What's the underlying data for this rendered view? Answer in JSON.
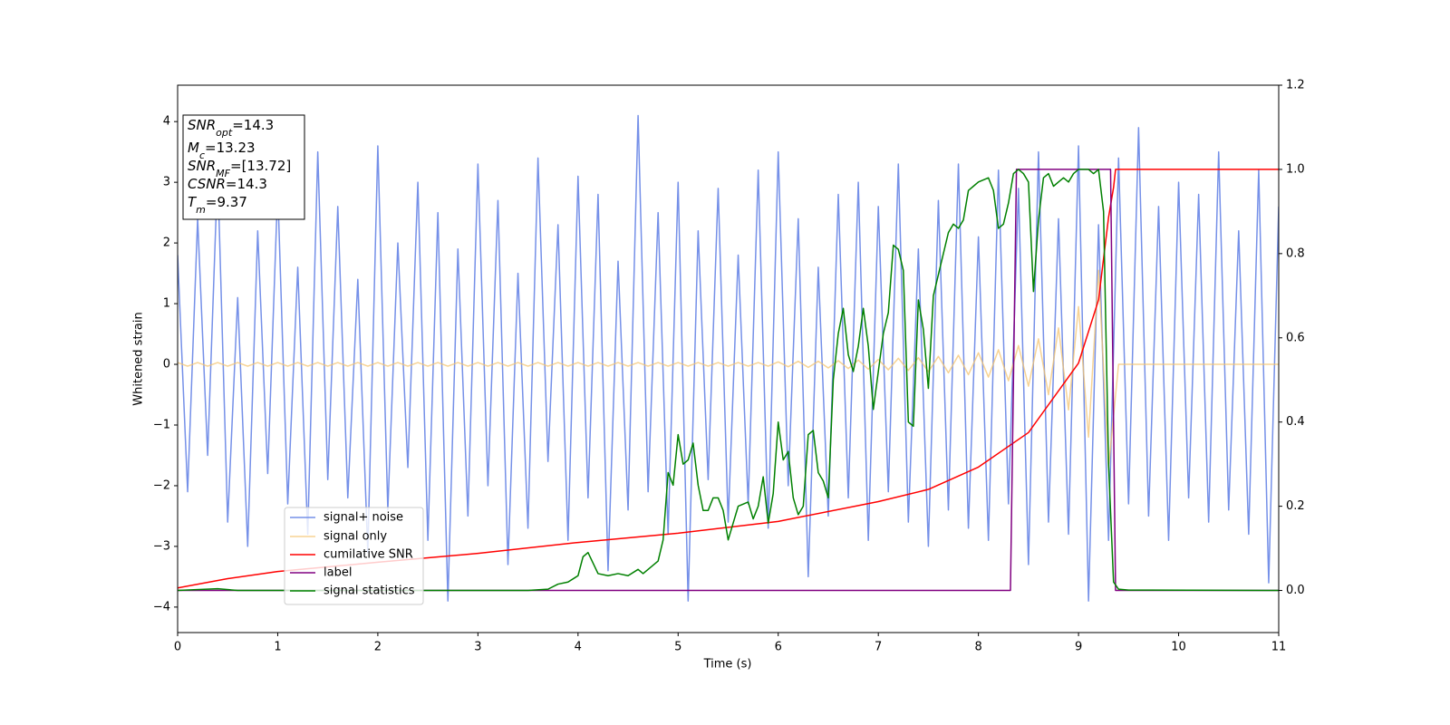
{
  "chart_data": {
    "type": "line",
    "xlabel": "Time (s)",
    "ylabel": "Whitened strain",
    "xlim": [
      0,
      11
    ],
    "ylim": [
      -4.42,
      4.6
    ],
    "y2lim": [
      -0.1,
      1.2
    ],
    "xticks": [
      0,
      1,
      2,
      3,
      4,
      5,
      6,
      7,
      8,
      9,
      10,
      11
    ],
    "yticks": [
      {
        "value": -4,
        "label": "−4"
      },
      {
        "value": -3,
        "label": "−3"
      },
      {
        "value": -2,
        "label": "−2"
      },
      {
        "value": -1,
        "label": "−1"
      },
      0,
      1,
      2,
      3,
      4
    ],
    "y2ticks": [
      {
        "value": 0,
        "label": "0.0"
      },
      {
        "value": 0.2,
        "label": "0.2"
      },
      {
        "value": 0.4,
        "label": "0.4"
      },
      {
        "value": 0.6,
        "label": "0.6"
      },
      {
        "value": 0.8,
        "label": "0.8"
      },
      {
        "value": 1.0,
        "label": "1.0"
      },
      {
        "value": 1.2,
        "label": "1.2"
      }
    ],
    "annotation": [
      {
        "name": "SNR",
        "sub": "opt",
        "text": "=14.3"
      },
      {
        "name": "M",
        "sub": "c",
        "text": "=13.23"
      },
      {
        "name": "SNR",
        "sub": "MF",
        "text": "=[13.72]"
      },
      {
        "name": "CSNR",
        "text": "=14.3"
      },
      {
        "name": "T",
        "sub": "m",
        "text": "=9.37"
      }
    ],
    "x": [
      0,
      0.1,
      0.2,
      0.3,
      0.4,
      0.5,
      0.6,
      0.7,
      0.8,
      0.9,
      1,
      1.1,
      1.2,
      1.3,
      1.4,
      1.5,
      1.6,
      1.7,
      1.8,
      1.9,
      2,
      2.1,
      2.2,
      2.3,
      2.4,
      2.5,
      2.6,
      2.7,
      2.8,
      2.9,
      3,
      3.1,
      3.2,
      3.3,
      3.4,
      3.5,
      3.6,
      3.7,
      3.8,
      3.9,
      4,
      4.1,
      4.2,
      4.3,
      4.4,
      4.5,
      4.6,
      4.7,
      4.8,
      4.9,
      5,
      5.1,
      5.2,
      5.3,
      5.4,
      5.5,
      5.6,
      5.7,
      5.8,
      5.9,
      6,
      6.1,
      6.2,
      6.3,
      6.4,
      6.5,
      6.6,
      6.7,
      6.8,
      6.9,
      7,
      7.1,
      7.2,
      7.3,
      7.4,
      7.5,
      7.6,
      7.7,
      7.8,
      7.9,
      8,
      8.1,
      8.2,
      8.3,
      8.4,
      8.5,
      8.6,
      8.7,
      8.8,
      8.9,
      9,
      9.1,
      9.2,
      9.3,
      9.4,
      9.5,
      9.6,
      9.7,
      9.8,
      9.9,
      10,
      10.1,
      10.2,
      10.3,
      10.4,
      10.5,
      10.6,
      10.7,
      10.8,
      10.9,
      11
    ],
    "series": [
      {
        "name": "signal+ noise",
        "color": "#7590e8",
        "values": [
          1.8,
          -2.1,
          2.4,
          -1.5,
          3.2,
          -2.6,
          1.1,
          -3.0,
          2.2,
          -1.8,
          2.9,
          -2.3,
          1.6,
          -2.8,
          3.5,
          -1.9,
          2.6,
          -2.2,
          1.4,
          -3.1,
          3.6,
          -2.4,
          2.0,
          -1.7,
          3.0,
          -2.9,
          2.5,
          -3.9,
          1.9,
          -2.5,
          3.3,
          -2.0,
          2.7,
          -3.3,
          1.5,
          -2.7,
          3.4,
          -1.6,
          2.3,
          -2.9,
          3.1,
          -2.2,
          2.8,
          -3.4,
          1.7,
          -2.4,
          4.1,
          -2.1,
          2.5,
          -2.8,
          3.0,
          -3.9,
          2.2,
          -1.9,
          2.9,
          -2.6,
          1.8,
          -2.3,
          3.2,
          -2.7,
          3.5,
          -2.0,
          2.4,
          -3.5,
          1.6,
          -2.5,
          2.8,
          -2.2,
          3.0,
          -2.9,
          2.6,
          -2.1,
          3.3,
          -2.6,
          1.9,
          -3.0,
          2.7,
          -2.4,
          3.3,
          -2.7,
          2.1,
          -2.9,
          3.2,
          -2.3,
          2.9,
          -3.3,
          3.5,
          -2.6,
          2.4,
          -2.8,
          3.6,
          -3.9,
          2.3,
          -2.9,
          3.4,
          -2.3,
          3.9,
          -2.5,
          2.6,
          -2.9,
          3.0,
          -2.2,
          2.8,
          -2.6,
          3.5,
          -2.4,
          2.2,
          -2.8,
          3.2,
          -3.6,
          2.6
        ]
      },
      {
        "name": "signal only",
        "color": "#f4c470",
        "values": [
          0.03,
          -0.03,
          0.03,
          -0.03,
          0.03,
          -0.03,
          0.03,
          -0.03,
          0.03,
          -0.03,
          0.03,
          -0.03,
          0.03,
          -0.03,
          0.03,
          -0.03,
          0.03,
          -0.03,
          0.03,
          -0.03,
          0.03,
          -0.03,
          0.03,
          -0.03,
          0.03,
          -0.03,
          0.03,
          -0.03,
          0.03,
          -0.03,
          0.03,
          -0.03,
          0.03,
          -0.03,
          0.03,
          -0.03,
          0.03,
          -0.03,
          0.03,
          -0.03,
          0.03,
          -0.03,
          0.03,
          -0.03,
          0.03,
          -0.03,
          0.03,
          -0.03,
          0.03,
          -0.03,
          0.03,
          -0.03,
          0.03,
          -0.03,
          0.03,
          -0.03,
          0.03,
          -0.03,
          0.03,
          -0.03,
          0.04,
          -0.04,
          0.05,
          -0.05,
          0.05,
          -0.06,
          0.06,
          -0.07,
          0.07,
          -0.08,
          0.08,
          -0.09,
          0.1,
          -0.1,
          0.11,
          -0.12,
          0.13,
          -0.14,
          0.15,
          -0.17,
          0.19,
          -0.21,
          0.24,
          -0.27,
          0.31,
          -0.36,
          0.42,
          -0.5,
          0.6,
          -0.75,
          0.95,
          -1.2,
          1.55,
          -1.7,
          0,
          0,
          0,
          0,
          0,
          0,
          0,
          0,
          0,
          0,
          0,
          0,
          0,
          0,
          0,
          0,
          0
        ]
      },
      {
        "name": "cumilative SNR",
        "color": "#ff0000",
        "axis": "y2",
        "x": [
          0,
          0.5,
          1,
          2,
          3,
          4,
          5,
          6,
          7,
          7.5,
          8,
          8.5,
          9,
          9.2,
          9.3,
          9.35,
          9.37,
          11
        ],
        "values": [
          0.006,
          0.028,
          0.045,
          0.067,
          0.088,
          0.114,
          0.136,
          0.164,
          0.211,
          0.24,
          0.293,
          0.375,
          0.54,
          0.69,
          0.886,
          0.957,
          1.0,
          1.0
        ]
      },
      {
        "name": "label",
        "color": "#800080",
        "axis": "y2",
        "x": [
          0,
          8.32,
          8.38,
          9.32,
          9.37,
          11
        ],
        "values": [
          0,
          0,
          1,
          1,
          0,
          0
        ]
      },
      {
        "name": "signal statistics",
        "color": "#008000",
        "axis": "y2",
        "x": [
          0,
          0.4,
          0.6,
          3.5,
          3.7,
          3.8,
          3.9,
          4.0,
          4.05,
          4.1,
          4.2,
          4.3,
          4.4,
          4.5,
          4.6,
          4.65,
          4.7,
          4.8,
          4.85,
          4.9,
          4.95,
          5.0,
          5.05,
          5.1,
          5.15,
          5.2,
          5.25,
          5.3,
          5.35,
          5.4,
          5.45,
          5.5,
          5.55,
          5.6,
          5.7,
          5.75,
          5.8,
          5.85,
          5.9,
          5.95,
          6.0,
          6.05,
          6.1,
          6.15,
          6.2,
          6.25,
          6.3,
          6.35,
          6.4,
          6.45,
          6.5,
          6.55,
          6.6,
          6.65,
          6.7,
          6.75,
          6.8,
          6.85,
          6.9,
          6.95,
          7.0,
          7.05,
          7.1,
          7.15,
          7.2,
          7.25,
          7.3,
          7.35,
          7.4,
          7.45,
          7.5,
          7.55,
          7.6,
          7.7,
          7.75,
          7.8,
          7.85,
          7.9,
          7.95,
          8.0,
          8.1,
          8.15,
          8.2,
          8.25,
          8.3,
          8.35,
          8.4,
          8.45,
          8.5,
          8.55,
          8.6,
          8.65,
          8.7,
          8.75,
          8.8,
          8.85,
          8.9,
          8.95,
          9.0,
          9.05,
          9.1,
          9.15,
          9.2,
          9.25,
          9.3,
          9.35,
          9.4,
          9.5,
          11
        ],
        "values": [
          0,
          0.004,
          0,
          0,
          0.003,
          0.015,
          0.02,
          0.035,
          0.08,
          0.09,
          0.04,
          0.035,
          0.04,
          0.035,
          0.05,
          0.04,
          0.05,
          0.07,
          0.12,
          0.28,
          0.25,
          0.37,
          0.3,
          0.31,
          0.35,
          0.25,
          0.19,
          0.19,
          0.22,
          0.22,
          0.19,
          0.12,
          0.16,
          0.2,
          0.21,
          0.17,
          0.2,
          0.27,
          0.16,
          0.23,
          0.4,
          0.31,
          0.33,
          0.22,
          0.18,
          0.2,
          0.37,
          0.38,
          0.28,
          0.26,
          0.22,
          0.5,
          0.61,
          0.67,
          0.56,
          0.52,
          0.58,
          0.67,
          0.58,
          0.43,
          0.52,
          0.61,
          0.66,
          0.82,
          0.81,
          0.76,
          0.4,
          0.39,
          0.69,
          0.62,
          0.48,
          0.7,
          0.75,
          0.85,
          0.87,
          0.86,
          0.88,
          0.95,
          0.96,
          0.97,
          0.98,
          0.95,
          0.86,
          0.87,
          0.92,
          0.99,
          1.0,
          0.99,
          0.97,
          0.71,
          0.88,
          0.98,
          0.99,
          0.96,
          0.97,
          0.98,
          0.97,
          0.99,
          1.0,
          1.0,
          1.0,
          0.99,
          1.0,
          0.9,
          0.3,
          0.02,
          0.003,
          0.001,
          0
        ]
      }
    ]
  }
}
